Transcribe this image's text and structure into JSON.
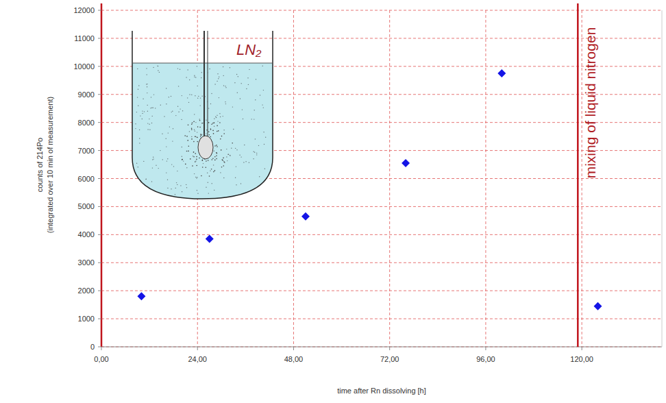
{
  "chart_data": {
    "type": "scatter",
    "x_label": "time after Rn dissolving [h]",
    "y_label": [
      "counts of 214Po",
      "(integrated over 10 min of measurement)"
    ],
    "x": [
      10,
      27,
      51,
      76,
      100,
      124
    ],
    "values": [
      1800,
      3850,
      4650,
      6550,
      9750,
      1450
    ],
    "color": "#1414e6",
    "marker": "diamond",
    "xlim": [
      0,
      140
    ],
    "ylim": [
      0,
      12000
    ],
    "xticks": [
      {
        "value": 0,
        "label": "0,00"
      },
      {
        "value": 24,
        "label": "24,00"
      },
      {
        "value": 48,
        "label": "48,00"
      },
      {
        "value": 72,
        "label": "72,00"
      },
      {
        "value": 96,
        "label": "96,00"
      },
      {
        "value": 120,
        "label": "120,00"
      }
    ],
    "yticks": [
      0,
      1000,
      2000,
      3000,
      4000,
      5000,
      6000,
      7000,
      8000,
      9000,
      10000,
      11000,
      12000
    ],
    "grid": true,
    "annotations": [
      {
        "text": "mixing of liquid nitrogen",
        "x": 119
      },
      {
        "text": "LN₂"
      }
    ]
  }
}
